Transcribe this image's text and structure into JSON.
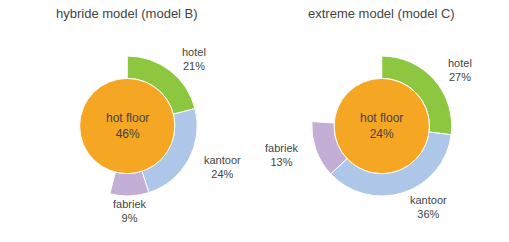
{
  "chart_data": [
    {
      "type": "donut",
      "title": "hybride model (model B)",
      "categories": [
        "hotel",
        "kantoor",
        "fabriek"
      ],
      "values": [
        21,
        24,
        9
      ],
      "value_labels": [
        "21%",
        "24%",
        "9%"
      ],
      "colors": [
        "#8dc63f",
        "#aec6e8",
        "#c3aed6"
      ],
      "data_labels": true,
      "center": {
        "label": "hot floor",
        "value": 46,
        "value_label": "46%",
        "color": "#f5a623"
      }
    },
    {
      "type": "donut",
      "title": "extreme model (model C)",
      "categories": [
        "hotel",
        "kantoor",
        "fabriek"
      ],
      "values": [
        27,
        36,
        13
      ],
      "value_labels": [
        "27%",
        "36%",
        "13%"
      ],
      "colors": [
        "#8dc63f",
        "#aec6e8",
        "#c3aed6"
      ],
      "data_labels": true,
      "center": {
        "label": "hot floor",
        "value": 24,
        "value_label": "24%",
        "color": "#f5a623"
      }
    }
  ]
}
